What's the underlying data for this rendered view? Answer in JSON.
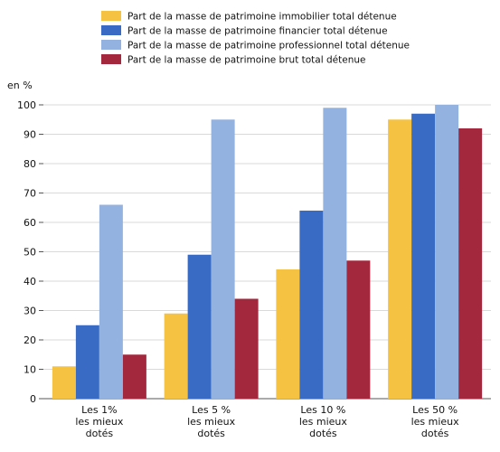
{
  "chart_data": {
    "type": "bar",
    "unit_label": "en %",
    "categories": [
      [
        "Les 1%",
        "les mieux",
        "dotés"
      ],
      [
        "Les 5 %",
        "les mieux",
        "dotés"
      ],
      [
        "Les 10 %",
        "les mieux",
        "dotés"
      ],
      [
        "Les 50 %",
        "les mieux",
        "dotés"
      ]
    ],
    "series": [
      {
        "name": "Part de la masse de patrimoine immobilier total détenue",
        "color": "#F5C242",
        "values": [
          11,
          29,
          44,
          95
        ]
      },
      {
        "name": "Part de la masse de patrimoine financier total détenue",
        "color": "#3A6BC4",
        "values": [
          25,
          49,
          64,
          97
        ]
      },
      {
        "name": "Part de la masse de patrimoine professionnel total détenue",
        "color": "#94B2E0",
        "values": [
          66,
          95,
          99,
          100
        ]
      },
      {
        "name": "Part de la masse de patrimoine brut total détenue",
        "color": "#A3283D",
        "values": [
          15,
          34,
          47,
          92
        ]
      }
    ],
    "ylim": [
      0,
      100
    ],
    "yticks": [
      0,
      10,
      20,
      30,
      40,
      50,
      60,
      70,
      80,
      90,
      100
    ],
    "grid": true,
    "legend": "top"
  }
}
